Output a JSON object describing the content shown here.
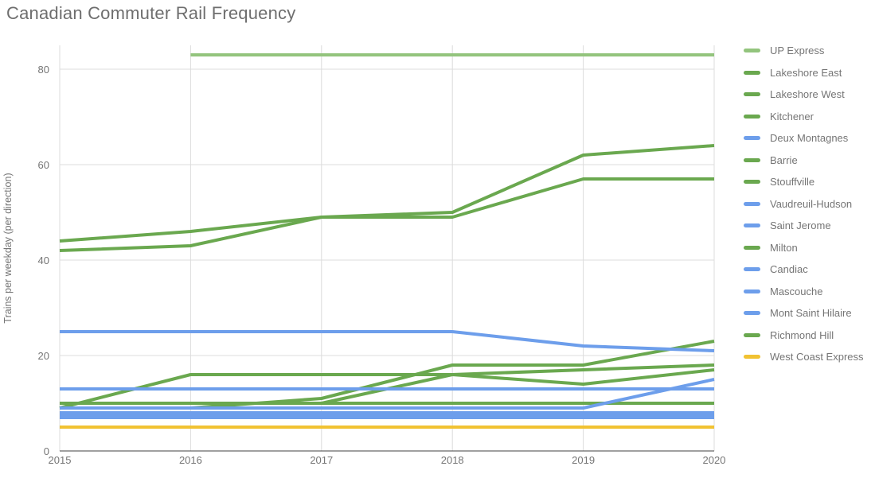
{
  "window": {
    "background": "#ffffff"
  },
  "chart": {
    "title": "Canadian Commuter Rail Frequency",
    "y_axis_title": "Trains per weekday (per direction)"
  },
  "chart_data": {
    "type": "line",
    "title": "Canadian Commuter Rail Frequency",
    "xlabel": "",
    "ylabel": "Trains per weekday (per direction)",
    "x": [
      2015,
      2016,
      2017,
      2018,
      2019,
      2020
    ],
    "x_tick_labels": [
      "2015",
      "2016",
      "2017",
      "2018",
      "2019",
      "2020"
    ],
    "yticks": [
      0,
      20,
      40,
      60,
      80
    ],
    "ylim": [
      0,
      85
    ],
    "grid": true,
    "legend_position": "right",
    "series": [
      {
        "name": "UP Express",
        "color": "#93c47d",
        "values": [
          null,
          83,
          83,
          83,
          83,
          83
        ]
      },
      {
        "name": "Lakeshore East",
        "color": "#6aa84f",
        "values": [
          42,
          43,
          49,
          49,
          57,
          57
        ]
      },
      {
        "name": "Lakeshore West",
        "color": "#6aa84f",
        "values": [
          44,
          46,
          49,
          50,
          62,
          64
        ]
      },
      {
        "name": "Kitchener",
        "color": "#6aa84f",
        "values": [
          10,
          10,
          10,
          16,
          14,
          17
        ]
      },
      {
        "name": "Deux Montagnes",
        "color": "#6d9eeb",
        "values": [
          25,
          25,
          25,
          25,
          22,
          21
        ]
      },
      {
        "name": "Barrie",
        "color": "#6aa84f",
        "values": [
          9,
          16,
          16,
          16,
          17,
          18
        ]
      },
      {
        "name": "Stouffville",
        "color": "#6aa84f",
        "values": [
          9,
          9,
          11,
          18,
          18,
          23
        ]
      },
      {
        "name": "Vaudreuil-Hudson",
        "color": "#6d9eeb",
        "values": [
          13,
          13,
          13,
          13,
          13,
          13
        ]
      },
      {
        "name": "Saint Jerome",
        "color": "#6d9eeb",
        "values": [
          9,
          9,
          9,
          9,
          9,
          15
        ]
      },
      {
        "name": "Milton",
        "color": "#6aa84f",
        "values": [
          10,
          10,
          10,
          10,
          10,
          10
        ]
      },
      {
        "name": "Candiac",
        "color": "#6d9eeb",
        "values": [
          8,
          8,
          8,
          8,
          8,
          8
        ]
      },
      {
        "name": "Mascouche",
        "color": "#6d9eeb",
        "values": [
          7.5,
          7.5,
          7.5,
          7.5,
          7.5,
          7.5
        ]
      },
      {
        "name": "Mont Saint Hilaire",
        "color": "#6d9eeb",
        "values": [
          7,
          7,
          7,
          7,
          7,
          7
        ]
      },
      {
        "name": "Richmond Hill",
        "color": "#6aa84f",
        "values": [
          8,
          8,
          8,
          8,
          8,
          8
        ]
      },
      {
        "name": "West Coast Express",
        "color": "#f1c232",
        "values": [
          5,
          5,
          5,
          5,
          5,
          5
        ]
      }
    ]
  },
  "style_colors": {
    "title_text": "#6e6e6e",
    "axis_text": "#757575",
    "gridline": "#dcdcdc",
    "baseline": "#424242"
  }
}
